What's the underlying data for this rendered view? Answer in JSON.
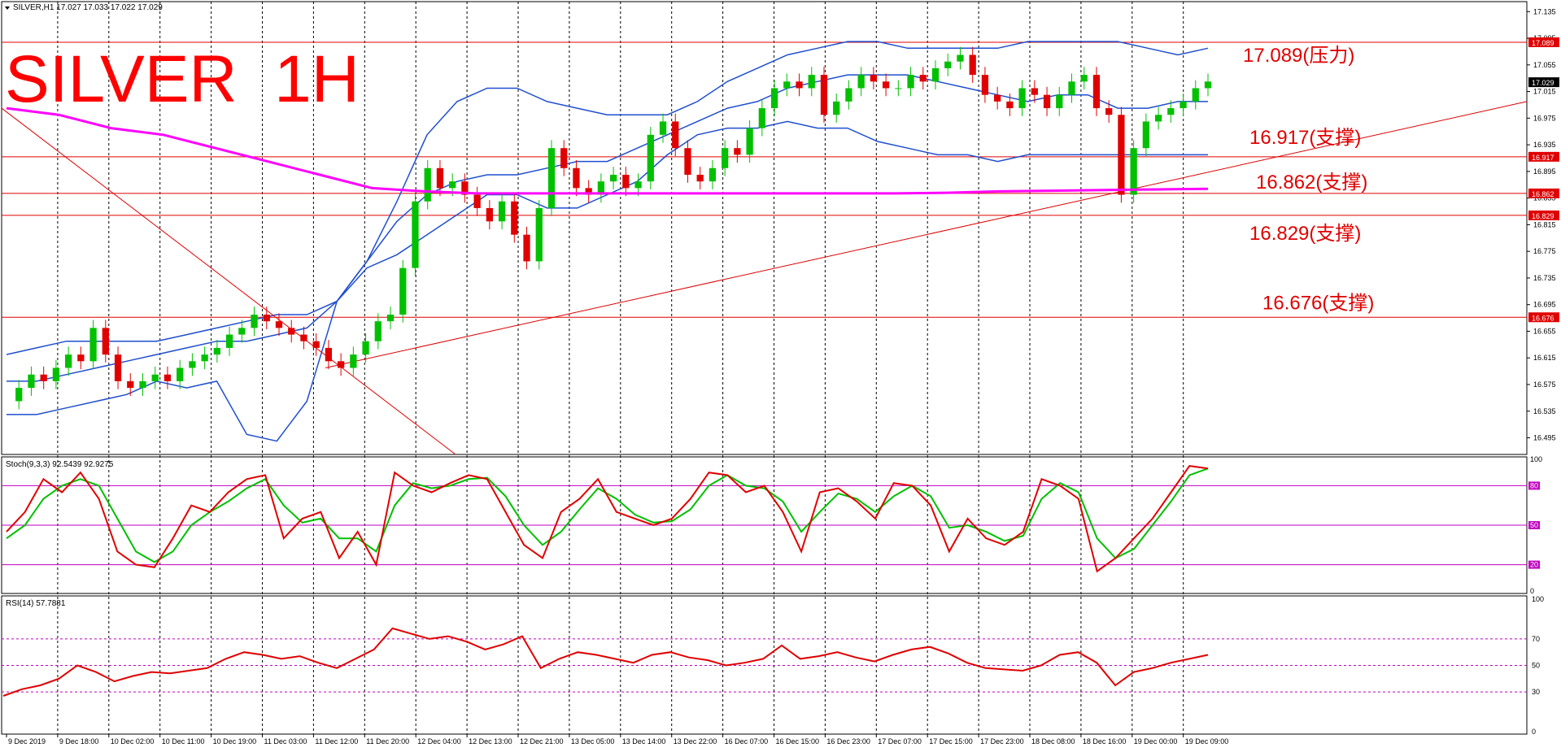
{
  "window": {
    "symbol_info": "SILVER,H1  17.027 17.033 17.022 17.029",
    "watermark": "SILVER  1H"
  },
  "colors": {
    "bull": "#00c000",
    "bear": "#e00000",
    "band": "#1f4fd0",
    "ma": "#ff00ff",
    "level": "#e00000",
    "stoch_main": "#e00000",
    "stoch_signal": "#00c000",
    "rsi": "#e00000"
  },
  "chart_data": [
    {
      "type": "candlestick",
      "title": "SILVER,H1",
      "ylim": [
        16.47,
        17.15
      ],
      "price_ticks": [
        "17.135",
        "17.095",
        "17.055",
        "17.015",
        "16.975",
        "16.935",
        "16.895",
        "16.855",
        "16.815",
        "16.775",
        "16.735",
        "16.695",
        "16.655",
        "16.615",
        "16.575",
        "16.535",
        "16.495"
      ],
      "current_price": "17.029",
      "x_time_labels": [
        "9 Dec 2019",
        "9 Dec 18:00",
        "10 Dec 02:00",
        "10 Dec 11:00",
        "10 Dec 19:00",
        "11 Dec 03:00",
        "11 Dec 12:00",
        "11 Dec 20:00",
        "12 Dec 04:00",
        "12 Dec 13:00",
        "12 Dec 21:00",
        "13 Dec 05:00",
        "13 Dec 14:00",
        "13 Dec 22:00",
        "16 Dec 07:00",
        "16 Dec 15:00",
        "16 Dec 23:00",
        "17 Dec 07:00",
        "17 Dec 15:00",
        "17 Dec 23:00",
        "18 Dec 08:00",
        "18 Dec 16:00",
        "19 Dec 00:00",
        "19 Dec 09:00"
      ],
      "levels": [
        {
          "value": 17.089,
          "axis_label": "17.089",
          "annotation": "17.089(压力)"
        },
        {
          "value": 16.917,
          "axis_label": "16.917",
          "annotation": "16.917(支撑)"
        },
        {
          "value": 16.862,
          "axis_label": "16.862",
          "annotation": "16.862(支撑)"
        },
        {
          "value": 16.829,
          "axis_label": "16.829",
          "annotation": "16.829(支撑)"
        },
        {
          "value": 16.676,
          "axis_label": "16.676",
          "annotation": "16.676(支撑)"
        }
      ],
      "close_series": [
        16.55,
        16.57,
        16.59,
        16.58,
        16.6,
        16.62,
        16.61,
        16.66,
        16.62,
        16.58,
        16.57,
        16.58,
        16.59,
        16.58,
        16.6,
        16.61,
        16.62,
        16.63,
        16.65,
        16.66,
        16.68,
        16.67,
        16.66,
        16.65,
        16.64,
        16.63,
        16.61,
        16.6,
        16.62,
        16.64,
        16.67,
        16.68,
        16.75,
        16.85,
        16.9,
        16.87,
        16.88,
        16.86,
        16.84,
        16.82,
        16.85,
        16.8,
        16.76,
        16.84,
        16.93,
        16.9,
        16.87,
        16.86,
        16.88,
        16.89,
        16.87,
        16.88,
        16.95,
        16.97,
        16.93,
        16.89,
        16.88,
        16.9,
        16.93,
        16.92,
        16.96,
        16.99,
        17.02,
        17.03,
        17.02,
        17.04,
        16.98,
        17.0,
        17.02,
        17.04,
        17.03,
        17.02,
        17.02,
        17.04,
        17.03,
        17.05,
        17.06,
        17.07,
        17.04,
        17.01,
        17.0,
        16.99,
        17.02,
        17.01,
        16.99,
        17.01,
        17.03,
        17.04,
        16.99,
        16.98,
        16.86,
        16.93,
        16.97,
        16.98,
        16.99,
        17.0,
        17.02,
        17.03
      ],
      "bollinger": {
        "upper": [
          16.62,
          16.63,
          16.64,
          16.64,
          16.64,
          16.64,
          16.65,
          16.66,
          16.67,
          16.68,
          16.68,
          16.7,
          16.76,
          16.85,
          16.95,
          17.0,
          17.02,
          17.02,
          17.0,
          16.99,
          16.98,
          16.98,
          16.98,
          17.0,
          17.03,
          17.05,
          17.07,
          17.08,
          17.09,
          17.09,
          17.08,
          17.08,
          17.08,
          17.08,
          17.09,
          17.09,
          17.09,
          17.09,
          17.08,
          17.07,
          17.08
        ],
        "middle": [
          16.58,
          16.58,
          16.59,
          16.6,
          16.61,
          16.62,
          16.63,
          16.64,
          16.64,
          16.65,
          16.66,
          16.7,
          16.76,
          16.82,
          16.86,
          16.88,
          16.89,
          16.89,
          16.9,
          16.91,
          16.91,
          16.93,
          16.95,
          16.97,
          16.99,
          17.0,
          17.02,
          17.03,
          17.04,
          17.04,
          17.04,
          17.03,
          17.02,
          17.01,
          17.0,
          17.01,
          17.01,
          16.99,
          16.99,
          17.0,
          17.0
        ],
        "lower": [
          16.53,
          16.53,
          16.54,
          16.55,
          16.56,
          16.58,
          16.57,
          16.58,
          16.5,
          16.49,
          16.55,
          16.7,
          16.75,
          16.77,
          16.8,
          16.83,
          16.86,
          16.86,
          16.84,
          16.84,
          16.86,
          16.88,
          16.92,
          16.95,
          16.96,
          16.96,
          16.97,
          16.96,
          16.96,
          16.94,
          16.93,
          16.92,
          16.92,
          16.91,
          16.92,
          16.92,
          16.92,
          16.92,
          16.92,
          16.92,
          16.92
        ]
      },
      "moving_average": [
        16.99,
        16.98,
        16.96,
        16.95,
        16.93,
        16.91,
        16.89,
        16.87,
        16.865,
        16.862,
        16.862,
        16.862,
        16.862,
        16.862,
        16.862,
        16.862,
        16.862,
        16.862,
        16.863,
        16.865,
        16.866,
        16.867,
        16.868,
        16.869
      ]
    },
    {
      "type": "line",
      "title": "Stoch(9,3,3) 92.5439 92.9275",
      "ylim": [
        0,
        100
      ],
      "levels": [
        20,
        50,
        80
      ],
      "tick_labels": [
        "100",
        "80",
        "50",
        "20",
        "0"
      ],
      "series": [
        {
          "values": [
            45,
            60,
            85,
            75,
            90,
            70,
            30,
            20,
            18,
            40,
            65,
            60,
            75,
            85,
            88,
            40,
            55,
            60,
            25,
            45,
            20,
            90,
            80,
            75,
            82,
            88,
            85,
            60,
            35,
            25,
            60,
            70,
            85,
            60,
            55,
            50,
            55,
            70,
            90,
            88,
            75,
            80,
            60,
            30,
            75,
            78,
            68,
            55,
            82,
            80,
            65,
            30,
            55,
            40,
            35,
            45,
            85,
            80,
            70,
            15,
            25,
            40,
            55,
            75,
            95,
            93
          ]
        },
        {
          "values": [
            40,
            50,
            70,
            80,
            85,
            80,
            55,
            30,
            22,
            30,
            50,
            60,
            68,
            78,
            85,
            65,
            52,
            55,
            40,
            40,
            30,
            65,
            82,
            78,
            80,
            85,
            86,
            72,
            50,
            35,
            45,
            62,
            78,
            70,
            58,
            52,
            53,
            62,
            80,
            88,
            80,
            78,
            68,
            45,
            60,
            74,
            70,
            60,
            72,
            80,
            72,
            48,
            50,
            45,
            38,
            42,
            70,
            82,
            75,
            40,
            25,
            32,
            50,
            68,
            88,
            93
          ]
        }
      ]
    },
    {
      "type": "line",
      "title": "RSI(14) 57.7881",
      "ylim": [
        0,
        100
      ],
      "levels": [
        30,
        50,
        70
      ],
      "tick_labels": [
        "100",
        "70",
        "50",
        "30",
        "0"
      ],
      "series": [
        {
          "values": [
            27,
            32,
            35,
            40,
            50,
            45,
            38,
            42,
            45,
            44,
            46,
            48,
            55,
            60,
            58,
            55,
            57,
            52,
            48,
            55,
            62,
            78,
            74,
            70,
            72,
            68,
            62,
            66,
            72,
            48,
            55,
            60,
            58,
            55,
            52,
            58,
            60,
            56,
            54,
            50,
            52,
            55,
            65,
            55,
            57,
            60,
            56,
            53,
            58,
            62,
            64,
            59,
            52,
            48,
            47,
            46,
            50,
            58,
            60,
            52,
            35,
            45,
            48,
            52,
            55,
            58
          ]
        }
      ]
    }
  ]
}
